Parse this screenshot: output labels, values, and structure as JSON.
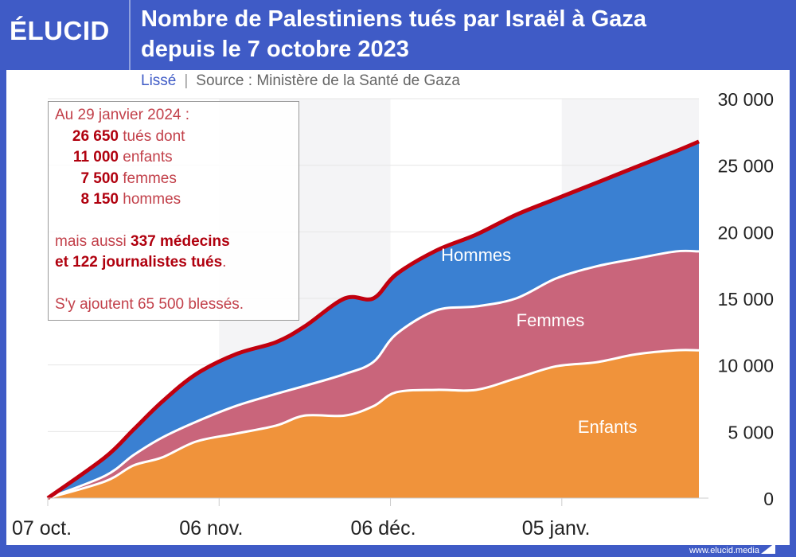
{
  "header": {
    "logo": "ÉLUCID",
    "title_line1": "Nombre de Palestiniens tués par Israël à Gaza",
    "title_line2": "depuis le 7 octobre 2023"
  },
  "subtitle": {
    "mode": "Lissé",
    "separator": "|",
    "source": "Source : Ministère de la Santé de Gaza"
  },
  "note": {
    "date": "Au 29 janvier 2024 :",
    "rows": [
      {
        "num": "26 650",
        "label": "tués dont"
      },
      {
        "num": "11 000",
        "label": "enfants"
      },
      {
        "num": "7 500",
        "label": "femmes"
      },
      {
        "num": "8 150",
        "label": "hommes"
      }
    ],
    "l1a": "mais aussi ",
    "l1b": "337 médecins",
    "l2a": "et 122 journalistes tués",
    "l2b": ".",
    "l3": "S'y ajoutent 65 500 blessés."
  },
  "footer": {
    "url": "www.elucid.media"
  },
  "colors": {
    "enfants": "#f0933b",
    "femmes": "#c9657b",
    "hommes": "#3a80d2",
    "total": "#c0000f",
    "frame": "#3f5bc6"
  },
  "chart_data": {
    "type": "area",
    "stacked": true,
    "title": "Nombre de Palestiniens tués par Israël à Gaza depuis le 7 octobre 2023",
    "x": [
      0,
      10,
      15,
      20,
      26,
      33,
      40,
      45,
      52,
      57,
      61,
      68,
      75,
      82,
      89,
      96,
      103,
      110,
      114
    ],
    "x_ticks": [
      {
        "x": 0,
        "label": "07 oct."
      },
      {
        "x": 30,
        "label": "06 nov."
      },
      {
        "x": 60,
        "label": "06 déc."
      },
      {
        "x": 90,
        "label": "05 janv."
      }
    ],
    "xlim": [
      0,
      114
    ],
    "ylim": [
      0,
      30000
    ],
    "y_ticks": [
      {
        "v": 0,
        "label": "0"
      },
      {
        "v": 5000,
        "label": "5 000"
      },
      {
        "v": 10000,
        "label": "10 000"
      },
      {
        "v": 15000,
        "label": "15 000"
      },
      {
        "v": 20000,
        "label": "20 000"
      },
      {
        "v": 25000,
        "label": "25 000"
      },
      {
        "v": 30000,
        "label": "30 000"
      }
    ],
    "series": [
      {
        "name": "Enfants",
        "values": [
          0,
          1250,
          2450,
          3050,
          4250,
          4850,
          5450,
          6200,
          6200,
          6900,
          7950,
          8130,
          8130,
          9000,
          9900,
          10200,
          10800,
          11100,
          11100
        ]
      },
      {
        "name": "Femmes",
        "values": [
          0,
          420,
          780,
          1490,
          1490,
          2080,
          2380,
          2230,
          3120,
          3320,
          4360,
          5970,
          6270,
          6000,
          6600,
          7200,
          7190,
          7430,
          7430
        ]
      },
      {
        "name": "Hommes",
        "values": [
          0,
          1380,
          1910,
          2690,
          3580,
          3890,
          3890,
          4470,
          5680,
          4780,
          4490,
          4490,
          5390,
          6280,
          5980,
          6270,
          6880,
          7530,
          8250
        ]
      }
    ],
    "label_positions": [
      {
        "series": "Hommes",
        "x": 75,
        "y": 17800
      },
      {
        "series": "Femmes",
        "x": 88,
        "y": 12900
      },
      {
        "series": "Enfants",
        "x": 98,
        "y": 4900
      }
    ],
    "legend": "inline"
  }
}
